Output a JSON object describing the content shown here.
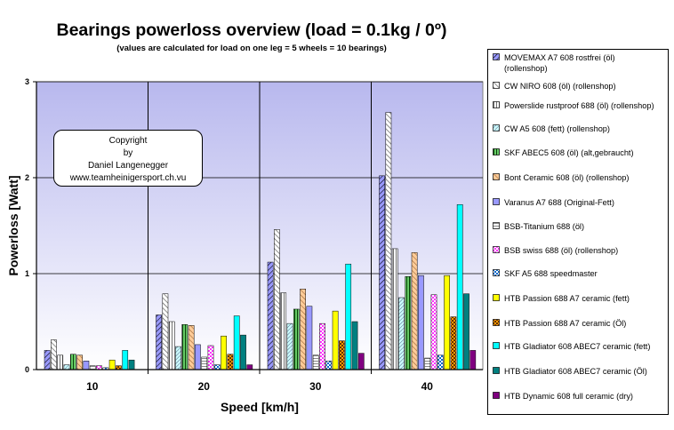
{
  "chart_data": {
    "type": "bar",
    "title": "Bearings powerloss overview (load = 0.1kg / 0º)",
    "subtitle": "(values are calculated for load on one leg = 5 wheels = 10 bearings)",
    "xlabel": "Speed [km/h]",
    "ylabel": "Powerloss [Watt]",
    "categories": [
      "10",
      "20",
      "30",
      "40"
    ],
    "ylim": [
      0,
      3
    ],
    "yticks": [
      "0",
      "1",
      "2",
      "3"
    ],
    "grid": true,
    "legend_position": "right",
    "series": [
      {
        "name": "MOVEMAX A7 608 rostfrei (öl) (rollenshop)",
        "color": "#9999ff",
        "pattern": "diag",
        "values": [
          0.2,
          0.57,
          1.12,
          2.02
        ]
      },
      {
        "name": "CW NIRO 608 (öl) (rollenshop)",
        "color": "#a0a0ff",
        "pattern": "diagrev",
        "values": [
          0.31,
          0.79,
          1.46,
          2.68
        ]
      },
      {
        "name": "Powerslide rustproof 688 (öl) (rollenshop)",
        "color": "#ffffff",
        "pattern": "vlines",
        "values": [
          0.15,
          0.5,
          0.8,
          1.26
        ]
      },
      {
        "name": "CW A5 608 (fett) (rollenshop)",
        "color": "#ccffff",
        "pattern": "diagdense",
        "values": [
          0.05,
          0.24,
          0.48,
          0.75
        ]
      },
      {
        "name": "SKF ABEC5 608 (öl) (alt,gebraucht)",
        "color": "#00cc66",
        "pattern": "vlinesgreen",
        "values": [
          0.16,
          0.47,
          0.63,
          0.97
        ]
      },
      {
        "name": "Bont Ceramic 608 (öl) (rollenshop)",
        "color": "#ffcc99",
        "pattern": "diagorange",
        "values": [
          0.15,
          0.46,
          0.84,
          1.22
        ]
      },
      {
        "name": "Varanus A7 688 (Original-Fett)",
        "color": "#9999ff",
        "pattern": "solid",
        "values": [
          0.09,
          0.26,
          0.66,
          0.98
        ]
      },
      {
        "name": "BSB-Titanium 688 (öl)",
        "color": "#ffffff",
        "pattern": "hlines",
        "values": [
          0.04,
          0.13,
          0.15,
          0.12
        ]
      },
      {
        "name": "BSB swiss 688 (öl) (rollenshop)",
        "color": "#ff66ff",
        "pattern": "checker",
        "values": [
          0.04,
          0.25,
          0.48,
          0.78
        ]
      },
      {
        "name": "SKF A5 688 speedmaster",
        "color": "#66ccff",
        "pattern": "checkblue",
        "values": [
          0.02,
          0.05,
          0.09,
          0.15
        ]
      },
      {
        "name": "HTB Passion 688 A7 ceramic (fett)",
        "color": "#ffff00",
        "pattern": "solid",
        "values": [
          0.1,
          0.35,
          0.61,
          0.98
        ]
      },
      {
        "name": "HTB Passion 688 A7 ceramic (Öl)",
        "color": "#cc6600",
        "pattern": "checkdark",
        "values": [
          0.04,
          0.16,
          0.3,
          0.55
        ]
      },
      {
        "name": "HTB Gladiator 608 ABEC7 ceramic (fett)",
        "color": "#00ffff",
        "pattern": "solid",
        "values": [
          0.2,
          0.56,
          1.1,
          1.72
        ]
      },
      {
        "name": "HTB Gladiator 608 ABEC7 ceramic (Öl)",
        "color": "#008080",
        "pattern": "solid",
        "values": [
          0.1,
          0.36,
          0.5,
          0.79
        ]
      },
      {
        "name": "HTB Dynamic 608 full ceramic (dry)",
        "color": "#800080",
        "pattern": "solid",
        "values": [
          0.0,
          0.05,
          0.17,
          0.2
        ]
      }
    ]
  },
  "copyright": {
    "line1": "Copyright",
    "line2": "by",
    "line3": "Daniel Langenegger",
    "line4": "www.teamheinigersport.ch.vu"
  }
}
